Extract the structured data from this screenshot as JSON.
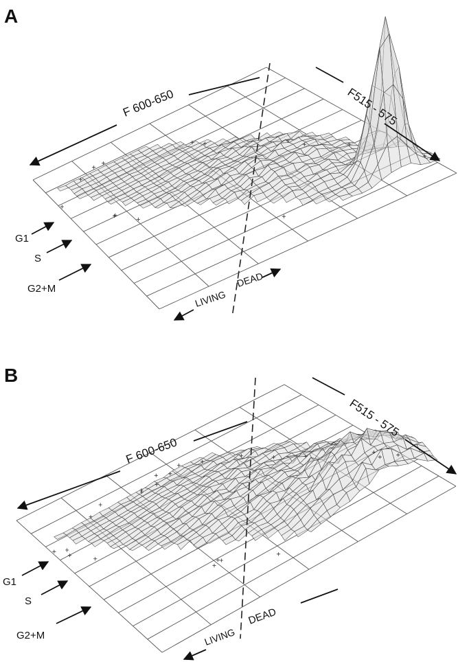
{
  "panels": [
    {
      "letter": "A",
      "axis_long": "F 600-650",
      "axis_short": "F515 - 575",
      "phases": [
        "G1",
        "S",
        "G2+M"
      ],
      "living": "LIVING",
      "dead": "DEAD"
    },
    {
      "letter": "B",
      "axis_long": "F 600-650",
      "axis_short": "F515 - 575",
      "phases": [
        "G1",
        "S",
        "G2+M"
      ],
      "living": "LIVING",
      "dead": "DEAD"
    }
  ],
  "chart_data": [
    {
      "type": "3d-surface",
      "panel": "A",
      "xlabel": "F 600-650",
      "ylabel": "F515 - 575",
      "peak": "single tall spike at the high F515-575 / dead end"
    },
    {
      "type": "3d-surface",
      "panel": "B",
      "xlabel": "F 600-650",
      "ylabel": "F515 - 575",
      "peak": "broad moderate ridge, no tall spike"
    }
  ]
}
